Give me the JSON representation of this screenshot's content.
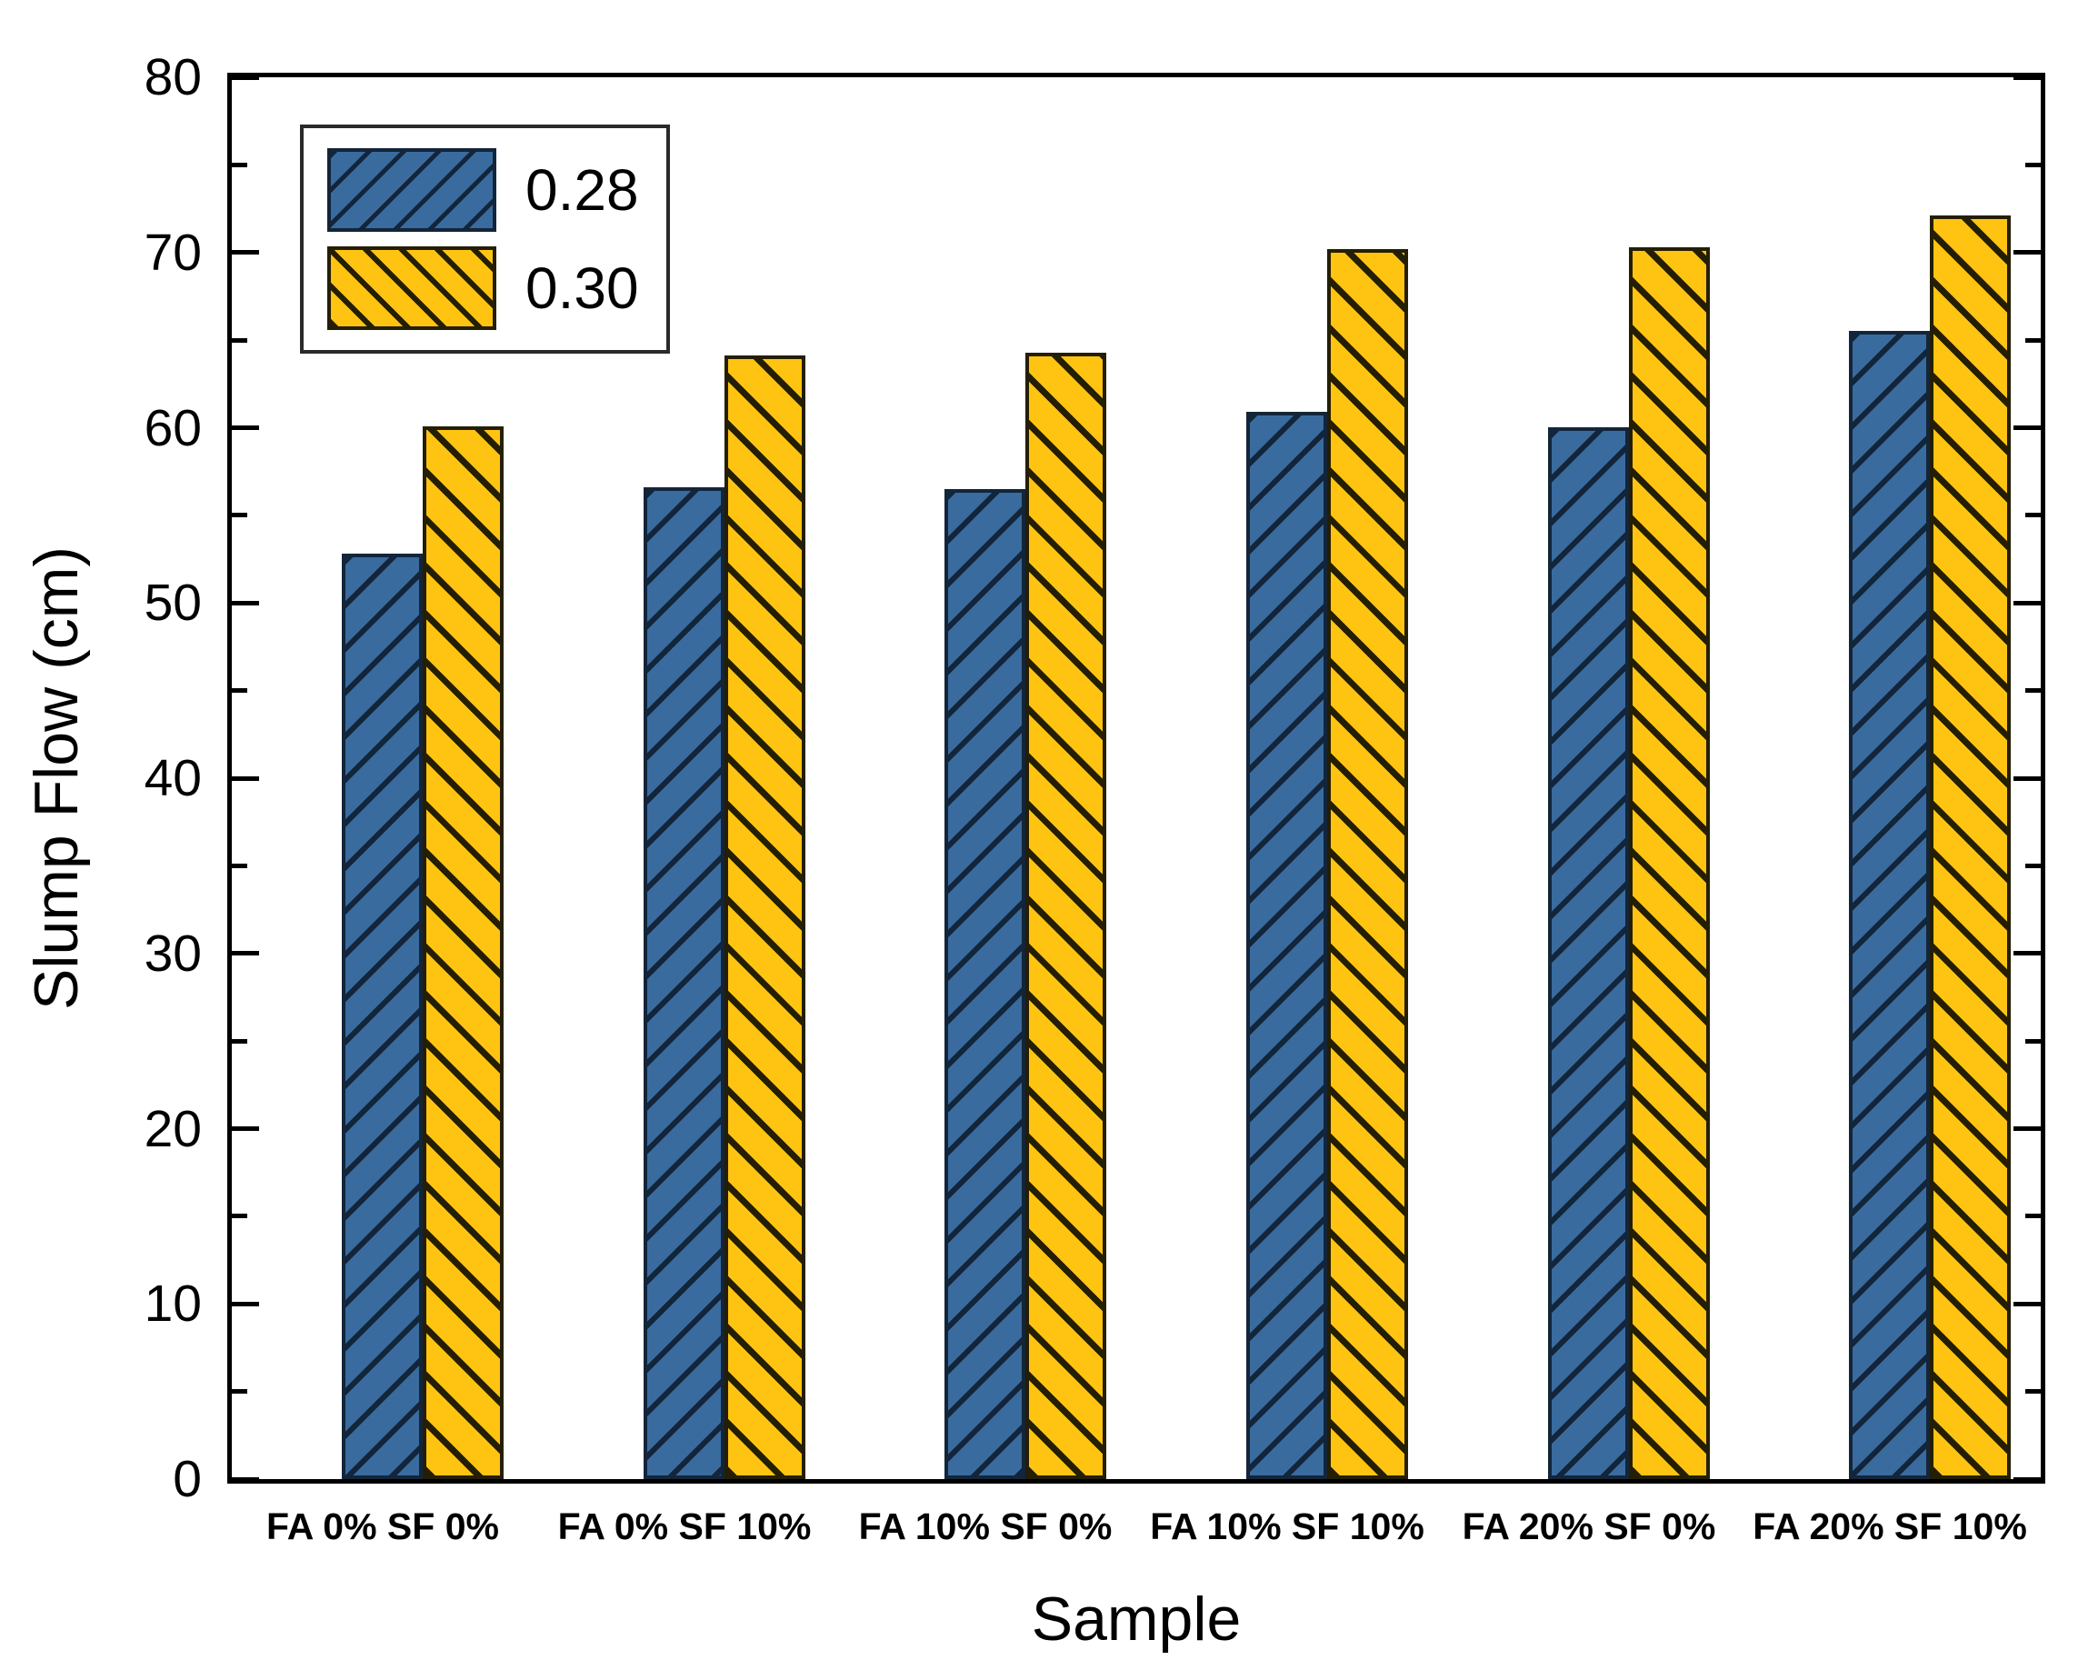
{
  "chart_data": {
    "type": "bar",
    "title": "",
    "xlabel": "Sample",
    "ylabel": "Slump Flow (cm)",
    "ylim": [
      0,
      80
    ],
    "yticks": [
      0,
      10,
      20,
      30,
      40,
      50,
      60,
      70,
      80
    ],
    "y_minor_step": 5,
    "grid": false,
    "legend_position": "top-left",
    "categories": [
      "FA 0% SF 0%",
      "FA 0% SF 10%",
      "FA 10% SF 0%",
      "FA 10% SF 10%",
      "FA 20% SF 0%",
      "FA 20% SF 10%"
    ],
    "series": [
      {
        "name": "0.28",
        "color": "#3a6b9e",
        "hatch": "/",
        "values": [
          52.8,
          56.6,
          56.5,
          60.9,
          60.0,
          65.5
        ]
      },
      {
        "name": "0.30",
        "color": "#ffc412",
        "hatch": "\\",
        "values": [
          60.1,
          64.1,
          64.3,
          70.2,
          70.3,
          72.1
        ]
      }
    ]
  }
}
